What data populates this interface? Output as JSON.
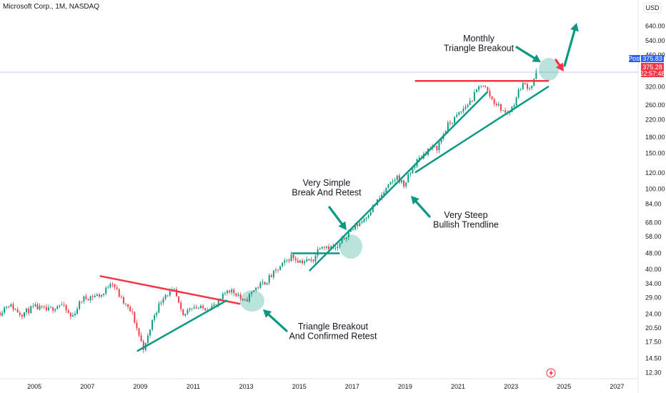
{
  "header": {
    "symbol_title": "Microsoft Corp., 1M, NASDAQ",
    "currency": "USD"
  },
  "chart_data": {
    "type": "candlestick",
    "scale": "log",
    "x_range": [
      2003.7,
      2027.8
    ],
    "y_range": [
      11.5,
      860
    ],
    "x_ticks": [
      "2005",
      "2007",
      "2009",
      "2011",
      "2013",
      "2015",
      "2017",
      "2019",
      "2021",
      "2023",
      "2025",
      "2027"
    ],
    "y_ticks": [
      "12.30",
      "14.50",
      "17.50",
      "20.50",
      "24.00",
      "29.00",
      "34.00",
      "40.00",
      "48.00",
      "58.00",
      "68.00",
      "84.00",
      "100.00",
      "120.00",
      "150.00",
      "180.00",
      "220.00",
      "260.00",
      "320.00",
      "460.00",
      "540.00",
      "640.00"
    ],
    "price_tags": [
      {
        "label": "Post",
        "value": "375.83",
        "color": "#2962ff"
      },
      {
        "label": "375.28",
        "sublabel": "22:57:48",
        "color": "#f23645"
      }
    ],
    "horizontal_line": 378,
    "annotations": [
      {
        "text": [
          "Monthly",
          "Triangle Breakout"
        ]
      },
      {
        "text": [
          "Very Simple",
          "Break And Retest"
        ]
      },
      {
        "text": [
          "Very Steep",
          "Bullish Trendline"
        ]
      },
      {
        "text": [
          "Triangle Breakout",
          "And Confirmed Retest"
        ]
      }
    ],
    "anchors": [
      [
        2003.7,
        24.5
      ],
      [
        2004.0,
        27.0
      ],
      [
        2004.5,
        24.0
      ],
      [
        2005.0,
        26.0
      ],
      [
        2005.5,
        25.0
      ],
      [
        2006.0,
        27.0
      ],
      [
        2006.4,
        23.0
      ],
      [
        2006.8,
        28.5
      ],
      [
        2007.2,
        29.5
      ],
      [
        2007.6,
        30.0
      ],
      [
        2007.9,
        35.5
      ],
      [
        2008.3,
        28.0
      ],
      [
        2008.7,
        24.0
      ],
      [
        2009.0,
        18.0
      ],
      [
        2009.15,
        16.0
      ],
      [
        2009.5,
        23.5
      ],
      [
        2009.9,
        30.0
      ],
      [
        2010.3,
        31.0
      ],
      [
        2010.6,
        23.0
      ],
      [
        2010.9,
        26.5
      ],
      [
        2011.3,
        25.5
      ],
      [
        2011.9,
        26.5
      ],
      [
        2012.3,
        32.0
      ],
      [
        2012.7,
        30.0
      ],
      [
        2012.9,
        27.0
      ],
      [
        2013.3,
        32.0
      ],
      [
        2013.7,
        34.5
      ],
      [
        2014.2,
        40.0
      ],
      [
        2014.7,
        46.5
      ],
      [
        2015.0,
        44.0
      ],
      [
        2015.5,
        44.0
      ],
      [
        2015.8,
        53.0
      ],
      [
        2016.1,
        52.0
      ],
      [
        2016.4,
        50.0
      ],
      [
        2016.8,
        60.0
      ],
      [
        2017.4,
        70.0
      ],
      [
        2017.9,
        85.0
      ],
      [
        2018.3,
        100.0
      ],
      [
        2018.7,
        115.0
      ],
      [
        2018.95,
        104.0
      ],
      [
        2019.4,
        135.0
      ],
      [
        2019.9,
        158.0
      ],
      [
        2020.2,
        160.0
      ],
      [
        2020.6,
        205.0
      ],
      [
        2021.0,
        232.0
      ],
      [
        2021.5,
        275.0
      ],
      [
        2021.9,
        336.0
      ],
      [
        2022.3,
        275.0
      ],
      [
        2022.8,
        236.0
      ],
      [
        2023.0,
        245.0
      ],
      [
        2023.4,
        330.0
      ],
      [
        2023.75,
        318.0
      ],
      [
        2023.95,
        375.0
      ]
    ],
    "trendlines": [
      {
        "name": "triangle-top",
        "color": "#f23645",
        "points": [
          [
            2007.5,
            37.0
          ],
          [
            2012.75,
            27.0
          ]
        ]
      },
      {
        "name": "triangle-bottom",
        "color": "#089981",
        "points": [
          [
            2008.9,
            15.8
          ],
          [
            2012.25,
            28.0
          ]
        ]
      },
      {
        "name": "break-retest-level",
        "color": "#089981",
        "points": [
          [
            2014.75,
            48.0
          ],
          [
            2016.5,
            48.0
          ]
        ]
      },
      {
        "name": "steep-trendline",
        "color": "#089981",
        "points": [
          [
            2015.4,
            39.5
          ],
          [
            2022.1,
            301.0
          ]
        ]
      },
      {
        "name": "trendline-2",
        "color": "#089981",
        "points": [
          [
            2019.4,
            121.0
          ],
          [
            2024.4,
            320.0
          ]
        ]
      },
      {
        "name": "resistance",
        "color": "#f23645",
        "points": [
          [
            2019.4,
            342.0
          ],
          [
            2024.4,
            342.0
          ]
        ]
      }
    ]
  }
}
